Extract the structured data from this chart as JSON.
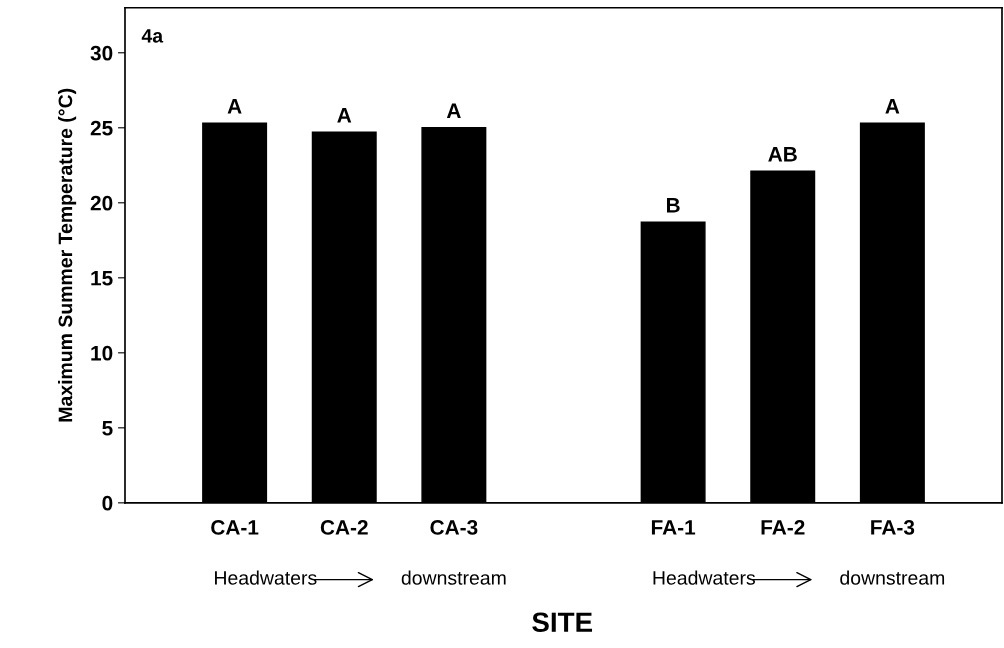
{
  "chart_data": {
    "type": "bar",
    "xlabel": "SITE",
    "ylabel": "Maximum Summer Temperature (°C)",
    "categories": [
      "CA-1",
      "CA-2",
      "CA-3",
      null,
      "FA-1",
      "FA-2",
      "FA-3"
    ],
    "values": [
      25.3,
      24.7,
      25.0,
      null,
      18.7,
      22.1,
      25.3
    ],
    "color": "#000000",
    "ylim": [
      0,
      33
    ],
    "yticks": [
      0,
      5,
      10,
      15,
      20,
      25,
      30
    ],
    "grid": false,
    "annotations": [
      "4a",
      "Headwaters",
      "downstream",
      "Headwaters",
      "downstream",
      {
        "text": "A",
        "x": "CA-1",
        "y": 25.3
      },
      {
        "text": "A",
        "x": "CA-2",
        "y": 24.7
      },
      {
        "text": "A",
        "x": "CA-3",
        "y": 25.0
      },
      {
        "text": "B",
        "x": "FA-1",
        "y": 18.7
      },
      {
        "text": "AB",
        "x": "FA-2",
        "y": 22.1
      },
      {
        "text": "A",
        "x": "FA-3",
        "y": 25.3
      }
    ]
  }
}
